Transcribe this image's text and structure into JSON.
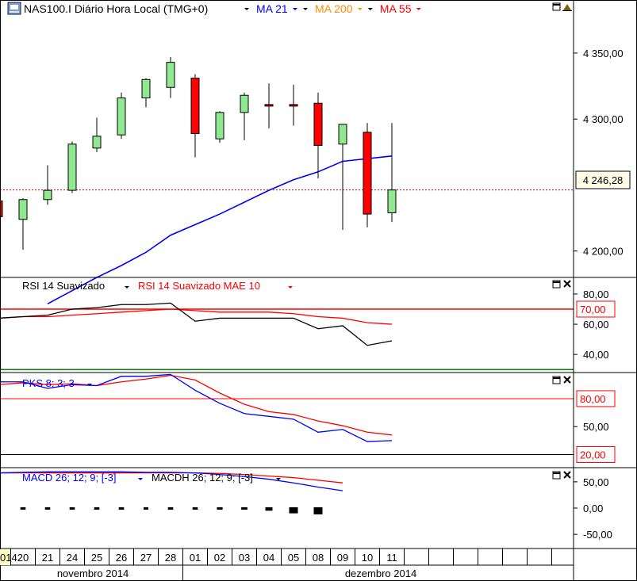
{
  "colors": {
    "candle_up": "#90e890",
    "candle_down": "#ff0000",
    "ma21": "#0000ff",
    "ma200": "#ff8c00",
    "ma55": "#ff0000",
    "rsi": "#000000",
    "rsi_mae": "#ff0000",
    "pks_k": "#0000ff",
    "pks_d": "#ff0000",
    "level_line": "#ff0000",
    "rsi_low_line": "#008000",
    "current_price_line": "#cc0000"
  },
  "header": {
    "symbol_icon": "cfd-icon",
    "title": "NAS100.I Diário Hora Local (TMG+0)",
    "indicators": [
      {
        "label": "MA 21",
        "color": "#0000ff"
      },
      {
        "label": "MA 200",
        "color": "#ff8c00"
      },
      {
        "label": "MA 55",
        "color": "#ff0000"
      }
    ]
  },
  "rsi_panel": {
    "labels": [
      {
        "label": "RSI 14 Suavizado",
        "color": "#000000"
      },
      {
        "label": "RSI 14 Suavizado MAE 10",
        "color": "#ff0000"
      }
    ],
    "ticks": [
      "80,00",
      "60,00",
      "40,00"
    ],
    "level_label": "70,00"
  },
  "pks_panel": {
    "label": "PKS 8; 3; 3",
    "ticks": [
      "50,00"
    ],
    "level_labels": [
      "80,00",
      "20,00"
    ]
  },
  "macd_panel": {
    "labels": [
      {
        "label": "MACD 26; 12; 9; [-3]",
        "color": "#0000ff"
      },
      {
        "label": "MACDH 26; 12; 9; [-3]",
        "color": "#000000"
      }
    ],
    "ticks": [
      "50,00",
      "0,00",
      "-50,00"
    ]
  },
  "price_axis": {
    "ticks": [
      "4 350,00",
      "4 300,00",
      "4 200,00"
    ],
    "current_price": "4 246,28"
  },
  "date_axis": {
    "days": [
      "014",
      "20",
      "21",
      "24",
      "25",
      "26",
      "27",
      "28",
      "01",
      "02",
      "03",
      "04",
      "05",
      "08",
      "09",
      "10",
      "11"
    ],
    "months": [
      "novembro 2014",
      "dezembro 2014"
    ]
  },
  "chart_data": {
    "type": "candlestick",
    "title": "NAS100.I Diário Hora Local (TMG+0)",
    "dates": [
      "2014-11-19",
      "2014-11-20",
      "2014-11-21",
      "2014-11-24",
      "2014-11-25",
      "2014-11-26",
      "2014-11-27",
      "2014-11-28",
      "2014-12-01",
      "2014-12-02",
      "2014-12-03",
      "2014-12-04",
      "2014-12-05",
      "2014-12-08",
      "2014-12-09",
      "2014-12-10",
      "2014-12-11"
    ],
    "ohlc": [
      {
        "open": 4238,
        "high": 4240,
        "low": 4224,
        "close": 4226
      },
      {
        "open": 4224,
        "high": 4240,
        "low": 4201,
        "close": 4239
      },
      {
        "open": 4239,
        "high": 4265,
        "low": 4235,
        "close": 4246
      },
      {
        "open": 4246,
        "high": 4283,
        "low": 4244,
        "close": 4281
      },
      {
        "open": 4278,
        "high": 4301,
        "low": 4275,
        "close": 4287
      },
      {
        "open": 4288,
        "high": 4320,
        "low": 4285,
        "close": 4316
      },
      {
        "open": 4316,
        "high": 4331,
        "low": 4309,
        "close": 4330
      },
      {
        "open": 4324,
        "high": 4347,
        "low": 4316,
        "close": 4343
      },
      {
        "open": 4331,
        "high": 4334,
        "low": 4271,
        "close": 4289
      },
      {
        "open": 4285,
        "high": 4306,
        "low": 4282,
        "close": 4305
      },
      {
        "open": 4305,
        "high": 4320,
        "low": 4284,
        "close": 4318
      },
      {
        "open": 4311,
        "high": 4327,
        "low": 4293,
        "close": 4310
      },
      {
        "open": 4311,
        "high": 4326,
        "low": 4295,
        "close": 4310
      },
      {
        "open": 4312,
        "high": 4320,
        "low": 4255,
        "close": 4280
      },
      {
        "open": 4281,
        "high": 4296,
        "low": 4216,
        "close": 4296
      },
      {
        "open": 4290,
        "high": 4297,
        "low": 4218,
        "close": 4228
      },
      {
        "open": 4229,
        "high": 4297,
        "low": 4222,
        "close": 4246.28
      }
    ],
    "ma21": [
      null,
      null,
      4160,
      4170,
      4180,
      4189,
      4199,
      4212,
      4220,
      4228,
      4237,
      4246,
      4254,
      4260,
      4268,
      4270,
      4272
    ],
    "ylim": [
      4180,
      4377
    ],
    "current_price": 4246.28,
    "rsi": [
      64,
      65,
      66,
      70,
      71,
      73,
      73,
      74,
      62,
      64,
      64,
      64,
      64,
      57,
      59,
      46,
      49
    ],
    "rsi_mae": [
      64,
      65,
      65,
      66,
      67,
      68,
      69,
      70,
      69,
      68,
      68,
      68,
      67,
      65,
      64,
      61,
      60
    ],
    "rsi_ylim": [
      28,
      91
    ],
    "rsi_level": 70,
    "rsi_low_level": 30,
    "pks_k": [
      98,
      98,
      91,
      95,
      94,
      104,
      104,
      106,
      89,
      75,
      64,
      61,
      58,
      44,
      47,
      34,
      35
    ],
    "pks_d": [
      95,
      97,
      95,
      96,
      94,
      98,
      101,
      105,
      100,
      86,
      74,
      66,
      63,
      56,
      51,
      44,
      41
    ],
    "pks_ylim": [
      6,
      108
    ],
    "pks_levels": [
      80,
      20
    ],
    "macd": [
      67,
      68,
      69,
      69,
      69,
      69,
      68,
      68,
      67,
      64,
      60,
      55,
      48,
      40,
      33,
      null,
      null
    ],
    "macd_signal": [
      67,
      67,
      67,
      67,
      67,
      67,
      67,
      67,
      67,
      66,
      64,
      61,
      58,
      53,
      48,
      null,
      null
    ],
    "macdh": [
      0,
      -1,
      -1,
      -1,
      -1,
      -1,
      0,
      -1,
      -1,
      -2,
      -3,
      -5,
      -10,
      -12,
      null,
      null,
      null
    ],
    "macd_ylim": [
      -77,
      77
    ]
  }
}
